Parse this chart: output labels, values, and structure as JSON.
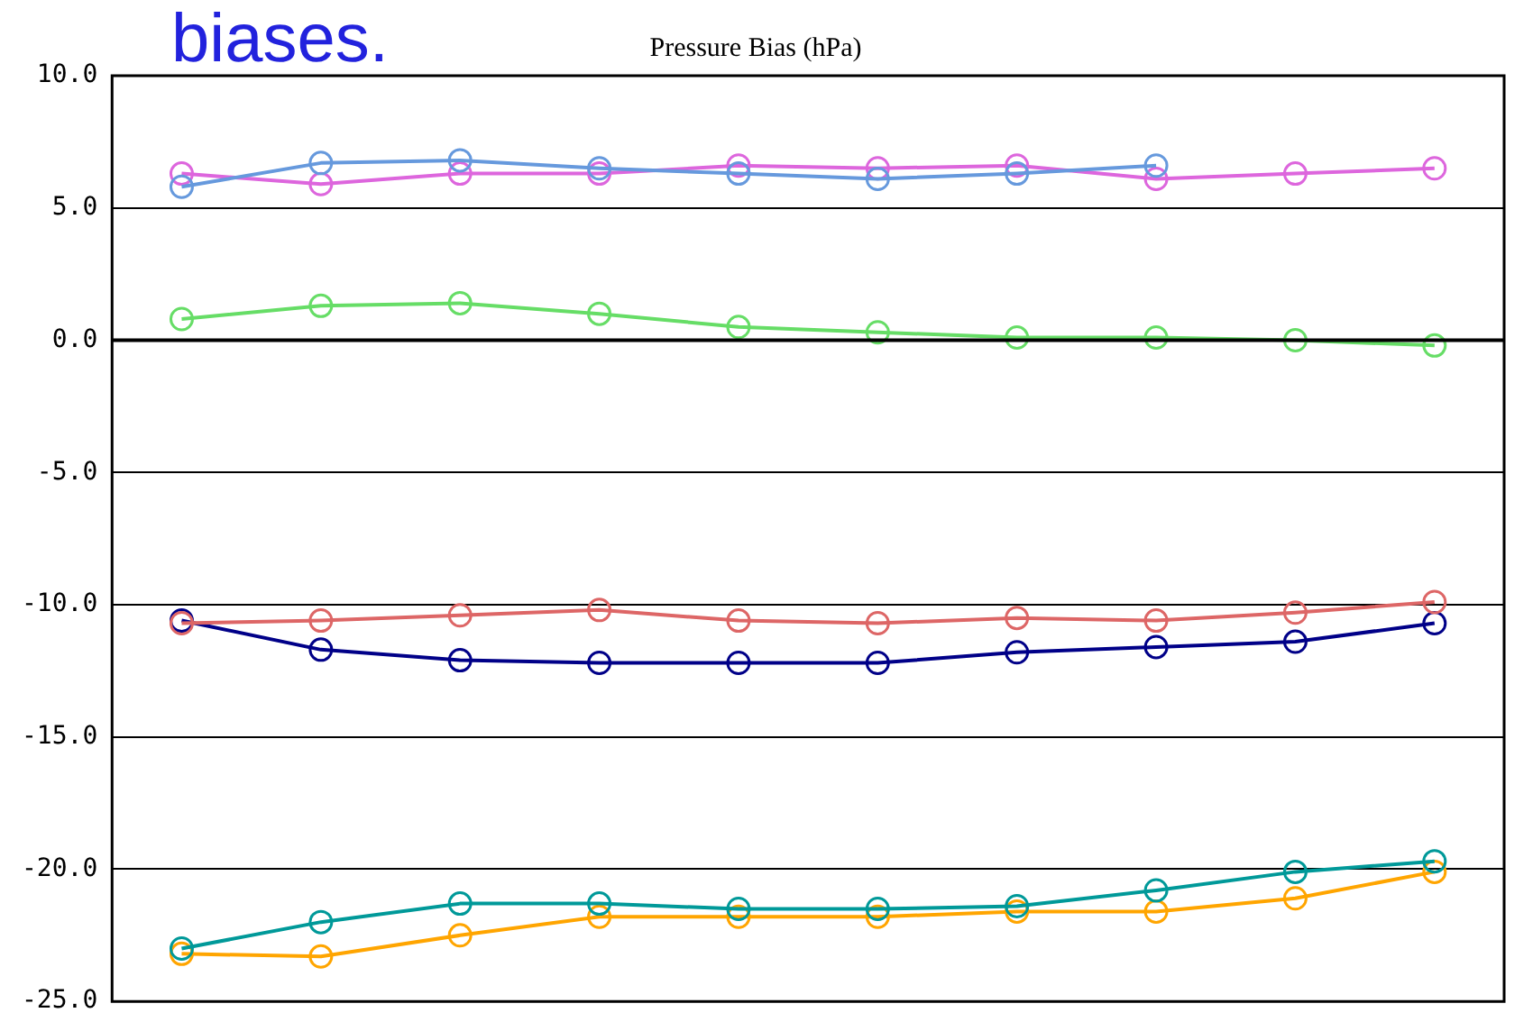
{
  "chart_data": {
    "type": "line",
    "title": "Pressure Bias (hPa)",
    "annotations": [
      "biases."
    ],
    "categories": [
      null,
      null,
      null,
      null,
      null,
      null,
      null,
      null,
      null,
      null
    ],
    "series": [
      {
        "color": "#6699dd",
        "values": [
          5.8,
          6.7,
          6.8,
          6.5,
          6.3,
          6.1,
          6.3,
          6.6,
          null,
          null
        ]
      },
      {
        "color": "#dd66dd",
        "values": [
          6.3,
          5.9,
          6.3,
          6.3,
          6.6,
          6.5,
          6.6,
          6.1,
          6.3,
          6.5
        ]
      },
      {
        "color": "#66dd66",
        "values": [
          0.8,
          1.3,
          1.4,
          1.0,
          0.5,
          0.3,
          0.1,
          0.1,
          0.0,
          -0.2
        ]
      },
      {
        "color": "#dd6666",
        "values": [
          -10.7,
          -10.6,
          -10.4,
          -10.2,
          -10.6,
          -10.7,
          -10.5,
          -10.6,
          -10.3,
          -9.9
        ]
      },
      {
        "color": "#000088",
        "values": [
          -10.6,
          -11.7,
          -12.1,
          -12.2,
          -12.2,
          -12.2,
          -11.8,
          -11.6,
          -11.4,
          -10.7
        ]
      },
      {
        "color": "#009999",
        "values": [
          -23.0,
          -22.0,
          -21.3,
          -21.3,
          -21.5,
          -21.5,
          -21.4,
          -20.8,
          -20.1,
          -19.7
        ]
      },
      {
        "color": "#ffa500",
        "values": [
          -23.2,
          -23.3,
          -22.5,
          -21.8,
          -21.8,
          -21.8,
          -21.6,
          -21.6,
          -21.1,
          -20.1
        ]
      }
    ],
    "ylim": [
      -25,
      10
    ],
    "yticks": [
      {
        "value": -25,
        "label": "-25.0"
      },
      {
        "value": -20,
        "label": "-20.0"
      },
      {
        "value": -15,
        "label": "-15.0"
      },
      {
        "value": -10,
        "label": "-10.0"
      },
      {
        "value": -5,
        "label": "-5.0"
      },
      {
        "value": 0,
        "label": "0.0"
      },
      {
        "value": 5,
        "label": "5.0"
      },
      {
        "value": 10,
        "label": "10.0"
      }
    ],
    "ref_lines": [
      {
        "axis": "y",
        "value": 0,
        "color": "#000000"
      }
    ],
    "grid": "y",
    "legend": false,
    "marker": "circle",
    "line_style": "solid",
    "tick_labels": "y"
  }
}
